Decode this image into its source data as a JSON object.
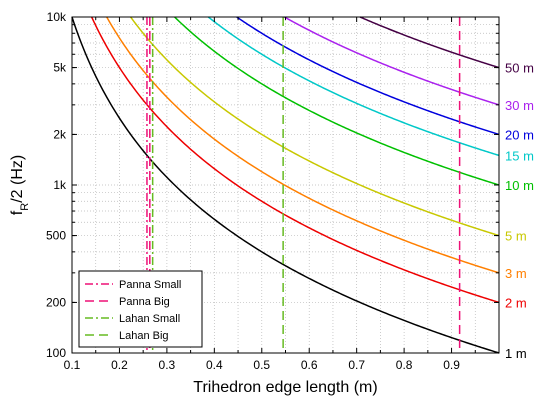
{
  "chart_data": {
    "type": "line",
    "xlabel": "Trihedron edge length (m)",
    "ylabel_main": "f",
    "ylabel_sub": "R",
    "ylabel_rest": "/2 (Hz)",
    "xlim": [
      0.1,
      1.0
    ],
    "ylim": [
      100,
      10000
    ],
    "yscale": "log",
    "grid": true,
    "legend_placement": "bottom-left",
    "xticks": [
      0.1,
      0.2,
      0.3,
      0.4,
      0.5,
      0.6,
      0.7,
      0.8,
      0.9
    ],
    "xtick_labels": [
      "0.1",
      "0.2",
      "0.3",
      "0.4",
      "0.5",
      "0.6",
      "0.7",
      "0.8",
      "0.9"
    ],
    "yticks": [
      100,
      200,
      500,
      1000,
      2000,
      5000,
      10000
    ],
    "ytick_labels": [
      "100",
      "200",
      "500",
      "1k",
      "2k",
      "5k",
      "10k"
    ],
    "model": "y = 100 * distance / x^2 (x in m, distance in m)",
    "series": [
      {
        "name": "1 m",
        "distance": 1,
        "color": "#000000"
      },
      {
        "name": "2 m",
        "distance": 2,
        "color": "#ee0000"
      },
      {
        "name": "3 m",
        "distance": 3,
        "color": "#ff7f00"
      },
      {
        "name": "5 m",
        "distance": 5,
        "color": "#c8c800"
      },
      {
        "name": "10 m",
        "distance": 10,
        "color": "#00c000"
      },
      {
        "name": "15 m",
        "distance": 15,
        "color": "#00c8c8"
      },
      {
        "name": "20 m",
        "distance": 20,
        "color": "#0000dd"
      },
      {
        "name": "30 m",
        "distance": 30,
        "color": "#aa22ee"
      },
      {
        "name": "50 m",
        "distance": 50,
        "color": "#440044"
      }
    ],
    "vlines": [
      {
        "name": "Panna Small",
        "x": 0.258,
        "color": "#ee1177",
        "dash": "8,3,2,3"
      },
      {
        "name": "Panna Big",
        "x": 0.917,
        "color": "#ee1177",
        "dash": "9,5"
      },
      {
        "name": "Lahan Small",
        "x": 0.27,
        "color": "#66bb22",
        "dash": "8,3,2,3"
      },
      {
        "name": "Lahan Big",
        "x": 0.545,
        "color": "#66bb22",
        "dash": "9,5"
      },
      {
        "name": "Panna Big",
        "x": 0.264,
        "color": "#ee1177",
        "dash": "9,5"
      }
    ],
    "legend": [
      "Panna Small",
      "Panna Big",
      "Lahan Small",
      "Lahan Big"
    ]
  }
}
